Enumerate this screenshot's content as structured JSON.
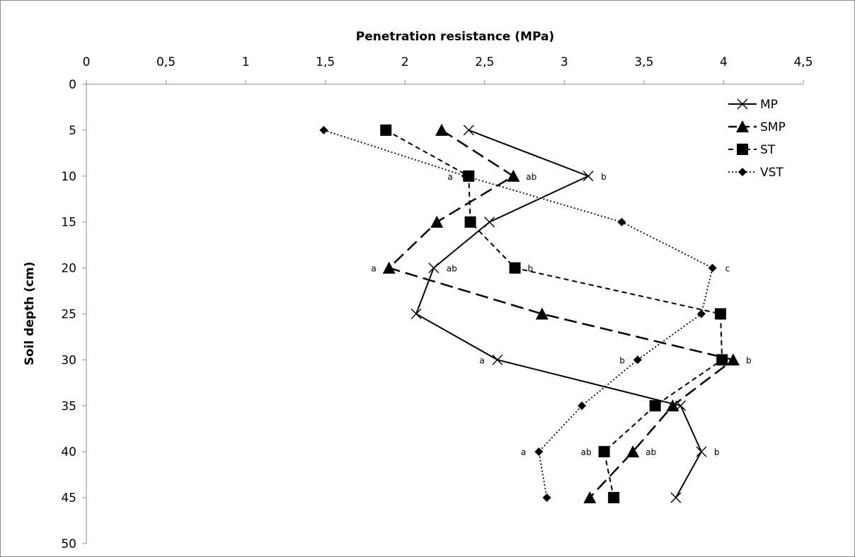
{
  "chart_data": {
    "type": "line",
    "title": "",
    "xlabel": "Penetration resistance (MPa)",
    "ylabel": "Soil depth (cm)",
    "xlim": [
      0,
      4.5
    ],
    "ylim": [
      0,
      50
    ],
    "x_ticks": [
      "0",
      "0,5",
      "1",
      "1,5",
      "2",
      "2,5",
      "3",
      "3,5",
      "4",
      "4,5"
    ],
    "x_tick_values": [
      0,
      0.5,
      1,
      1.5,
      2,
      2.5,
      3,
      3.5,
      4,
      4.5
    ],
    "y_ticks": [
      "0",
      "5",
      "10",
      "15",
      "20",
      "25",
      "30",
      "35",
      "40",
      "45",
      "50"
    ],
    "y_tick_values": [
      0,
      5,
      10,
      15,
      20,
      25,
      30,
      35,
      40,
      45,
      50
    ],
    "x_axis_position": "top",
    "y_axis_inverted": true,
    "grid": false,
    "legend_position": "top-right",
    "depth": [
      5,
      10,
      15,
      20,
      25,
      30,
      35,
      40,
      45
    ],
    "series": [
      {
        "name": "MP",
        "marker": "x",
        "line": "solid",
        "color": "#000000",
        "x": [
          2.4,
          3.15,
          2.53,
          2.18,
          2.07,
          2.58,
          3.73,
          3.86,
          3.7
        ]
      },
      {
        "name": "SMP",
        "marker": "triangle",
        "line": "longdash",
        "color": "#000000",
        "x": [
          2.23,
          2.68,
          2.2,
          1.9,
          2.86,
          4.06,
          3.68,
          3.43,
          3.16
        ]
      },
      {
        "name": "ST",
        "marker": "square",
        "line": "shortdash",
        "color": "#000000",
        "x": [
          1.88,
          2.4,
          2.41,
          2.69,
          3.98,
          3.99,
          3.57,
          3.25,
          3.31
        ]
      },
      {
        "name": "VST",
        "marker": "diamond",
        "line": "dotted",
        "color": "#000000",
        "x": [
          1.49,
          2.38,
          3.36,
          3.93,
          3.86,
          3.46,
          3.11,
          2.84,
          2.89
        ]
      }
    ],
    "annotations": [
      {
        "text": "a",
        "x": 2.38,
        "depth": 10,
        "side": "left"
      },
      {
        "text": "ab",
        "x": 2.68,
        "depth": 10,
        "side": "right"
      },
      {
        "text": "b",
        "x": 3.15,
        "depth": 10,
        "side": "right"
      },
      {
        "text": "a",
        "x": 1.9,
        "depth": 20,
        "side": "left"
      },
      {
        "text": "ab",
        "x": 2.18,
        "depth": 20,
        "side": "right"
      },
      {
        "text": "b",
        "x": 2.69,
        "depth": 20,
        "side": "right"
      },
      {
        "text": "c",
        "x": 3.93,
        "depth": 20,
        "side": "right"
      },
      {
        "text": "a",
        "x": 2.58,
        "depth": 30,
        "side": "left"
      },
      {
        "text": "b",
        "x": 3.46,
        "depth": 30,
        "side": "left"
      },
      {
        "text": "b",
        "x": 4.06,
        "depth": 30,
        "side": "right"
      },
      {
        "text": "a",
        "x": 2.84,
        "depth": 40,
        "side": "left"
      },
      {
        "text": "ab",
        "x": 3.25,
        "depth": 40,
        "side": "left"
      },
      {
        "text": "ab",
        "x": 3.43,
        "depth": 40,
        "side": "right"
      },
      {
        "text": "b",
        "x": 3.86,
        "depth": 40,
        "side": "right"
      }
    ]
  }
}
